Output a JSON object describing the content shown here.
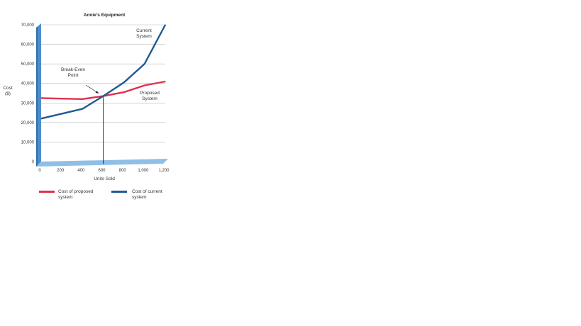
{
  "chart_data": {
    "type": "line",
    "title": "Annie's Equipment",
    "xlabel": "Units Sold",
    "ylabel_line1": "Cost",
    "ylabel_line2": "($)",
    "xlim": [
      0,
      1200
    ],
    "ylim": [
      0,
      70000
    ],
    "x_ticks": [
      "0",
      "200",
      "400",
      "600",
      "800",
      "1,000",
      "1,200"
    ],
    "x_tick_values": [
      0,
      200,
      400,
      600,
      800,
      1000,
      1200
    ],
    "y_ticks": [
      "0",
      "10,000",
      "20,000",
      "30,000",
      "40,000",
      "50,000",
      "60,000",
      "70,000"
    ],
    "y_tick_values": [
      0,
      10000,
      20000,
      30000,
      40000,
      50000,
      60000,
      70000
    ],
    "grid": true,
    "legend_position": "bottom",
    "series": [
      {
        "name": "Cost of proposed system",
        "legend_line1": "Cost of proposed",
        "legend_line2": "system",
        "color": "#e0304e",
        "x": [
          0,
          200,
          400,
          600,
          800,
          1000,
          1200
        ],
        "y": [
          32500,
          32200,
          32000,
          33500,
          35500,
          39000,
          41000
        ]
      },
      {
        "name": "Cost of current system",
        "legend_line1": "Cost of current",
        "legend_line2": "system",
        "color": "#1f5a8f",
        "x": [
          0,
          200,
          400,
          600,
          800,
          1000,
          1200
        ],
        "y": [
          22000,
          24500,
          27000,
          33500,
          40500,
          50000,
          70000
        ]
      }
    ],
    "annotations": {
      "current_line1": "Current",
      "current_line2": "System",
      "proposed_line1": "Proposed",
      "proposed_line2": "System",
      "breakeven_line1": "Break-Even",
      "breakeven_line2": "Point",
      "breakeven_x": 600,
      "breakeven_y": 33500
    },
    "colors": {
      "wall": "#4a8fcb",
      "wall_dark": "#2f6fa8",
      "floor": "#8fbfe6",
      "grid": "#bbbbbb"
    }
  }
}
